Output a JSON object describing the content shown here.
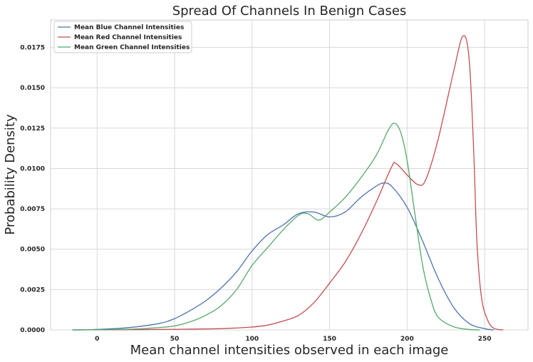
{
  "chart_data": {
    "type": "line",
    "title": "Spread Of Channels In Benign Cases",
    "xlabel": "Mean channel intensities observed in each image",
    "ylabel": "Probability Density",
    "xlim": [
      -30,
      278
    ],
    "ylim": [
      0,
      0.0192
    ],
    "x_ticks": [
      0,
      50,
      100,
      150,
      200,
      250
    ],
    "x_tick_labels": [
      "0",
      "50",
      "100",
      "150",
      "200",
      "250"
    ],
    "y_ticks": [
      0,
      0.0025,
      0.005,
      0.0075,
      0.01,
      0.0125,
      0.015,
      0.0175
    ],
    "y_tick_labels": [
      "0.0000",
      "0.0025",
      "0.0050",
      "0.0075",
      "0.0100",
      "0.0125",
      "0.0150",
      "0.0175"
    ],
    "grid": true,
    "legend_position": "top-left",
    "series": [
      {
        "name": "Mean Blue Channel Intensities",
        "color": "#4c72b0",
        "points": [
          [
            -16,
            0
          ],
          [
            0,
            3e-05
          ],
          [
            20,
            0.00014
          ],
          [
            40,
            0.0004
          ],
          [
            50,
            0.0007
          ],
          [
            60,
            0.0012
          ],
          [
            70,
            0.0018
          ],
          [
            80,
            0.0026
          ],
          [
            90,
            0.0036
          ],
          [
            100,
            0.0049
          ],
          [
            110,
            0.0059
          ],
          [
            120,
            0.0065
          ],
          [
            130,
            0.0072
          ],
          [
            140,
            0.0073
          ],
          [
            150,
            0.007
          ],
          [
            160,
            0.0073
          ],
          [
            170,
            0.0082
          ],
          [
            180,
            0.0089
          ],
          [
            185,
            0.0091
          ],
          [
            190,
            0.0089
          ],
          [
            200,
            0.0076
          ],
          [
            210,
            0.0055
          ],
          [
            220,
            0.0032
          ],
          [
            230,
            0.0014
          ],
          [
            240,
            0.0004
          ],
          [
            250,
            8e-05
          ],
          [
            256,
            0
          ]
        ]
      },
      {
        "name": "Mean Red Channel Intensities",
        "color": "#c44e52",
        "points": [
          [
            -16,
            0
          ],
          [
            40,
            3e-05
          ],
          [
            80,
            8e-05
          ],
          [
            100,
            0.00018
          ],
          [
            110,
            0.0003
          ],
          [
            120,
            0.00055
          ],
          [
            130,
            0.0009
          ],
          [
            140,
            0.0017
          ],
          [
            150,
            0.0029
          ],
          [
            160,
            0.0042
          ],
          [
            170,
            0.0059
          ],
          [
            180,
            0.0079
          ],
          [
            190,
            0.0101
          ],
          [
            193,
            0.0103
          ],
          [
            200,
            0.0096
          ],
          [
            207,
            0.009
          ],
          [
            212,
            0.0093
          ],
          [
            220,
            0.0118
          ],
          [
            230,
            0.016
          ],
          [
            236,
            0.0182
          ],
          [
            240,
            0.0168
          ],
          [
            243,
            0.011
          ],
          [
            245,
            0.0055
          ],
          [
            248,
            0.002
          ],
          [
            252,
            0.0006
          ],
          [
            256,
            0.0001
          ],
          [
            262,
            0
          ]
        ]
      },
      {
        "name": "Mean Green Channel Intensities",
        "color": "#55a868",
        "points": [
          [
            -16,
            0
          ],
          [
            20,
            4e-05
          ],
          [
            40,
            0.00015
          ],
          [
            50,
            0.00025
          ],
          [
            60,
            0.0005
          ],
          [
            70,
            0.0009
          ],
          [
            80,
            0.0015
          ],
          [
            90,
            0.0025
          ],
          [
            100,
            0.004
          ],
          [
            110,
            0.0051
          ],
          [
            120,
            0.0062
          ],
          [
            130,
            0.0071
          ],
          [
            136,
            0.0072
          ],
          [
            143,
            0.0068
          ],
          [
            150,
            0.0073
          ],
          [
            160,
            0.0082
          ],
          [
            170,
            0.0094
          ],
          [
            180,
            0.0108
          ],
          [
            188,
            0.0124
          ],
          [
            192,
            0.0128
          ],
          [
            196,
            0.0122
          ],
          [
            200,
            0.0105
          ],
          [
            205,
            0.0072
          ],
          [
            210,
            0.004
          ],
          [
            215,
            0.002
          ],
          [
            220,
            0.0008
          ],
          [
            230,
            0.0002
          ],
          [
            240,
            3e-05
          ],
          [
            247,
            0
          ]
        ]
      }
    ]
  }
}
